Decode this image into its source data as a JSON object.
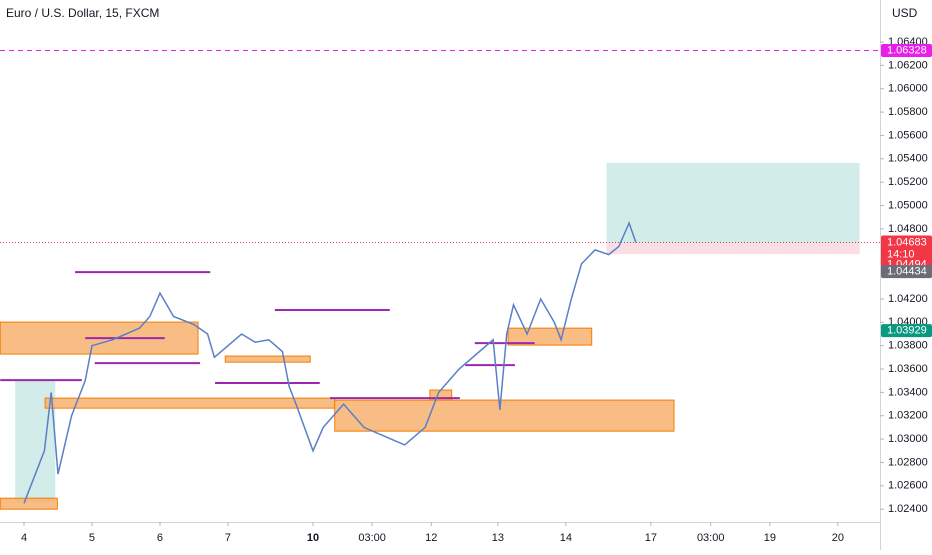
{
  "chart_data": {
    "type": "line",
    "title": "Euro / U.S. Dollar, 15, FXCM",
    "currency": "USD",
    "countdown": "14:10",
    "color": "#5b7fc7",
    "x": [
      0,
      0.3,
      0.4,
      0.5,
      0.7,
      0.9,
      1.0,
      1.3,
      1.5,
      1.7,
      1.85,
      2.0,
      2.2,
      2.5,
      2.7,
      2.8,
      3.0,
      3.2,
      3.4,
      3.6,
      3.8,
      3.9,
      4.0,
      4.25,
      4.4,
      4.7,
      5.0,
      5.4,
      5.6,
      5.9,
      6.1,
      6.4,
      6.7,
      6.9,
      7.0,
      7.1,
      7.2,
      7.4,
      7.6,
      7.8,
      7.9,
      8.05,
      8.2,
      8.4,
      8.6,
      8.75,
      8.9,
      9.0
    ],
    "values": [
      1.0245,
      1.029,
      1.034,
      1.027,
      1.032,
      1.035,
      1.038,
      1.0385,
      1.039,
      1.0395,
      1.0405,
      1.0425,
      1.0405,
      1.0398,
      1.039,
      1.037,
      1.038,
      1.039,
      1.0383,
      1.0385,
      1.0375,
      1.0345,
      1.033,
      1.029,
      1.031,
      1.033,
      1.031,
      1.03,
      1.0295,
      1.031,
      1.034,
      1.036,
      1.0375,
      1.0385,
      1.0325,
      1.039,
      1.0415,
      1.039,
      1.042,
      1.04,
      1.0385,
      1.042,
      1.045,
      1.0462,
      1.0458,
      1.0465,
      1.0485,
      1.04683
    ],
    "xlim": [
      -0.353,
      12.59
    ],
    "ylim": [
      1.0229,
      1.0676
    ],
    "xticks": [
      {
        "value": 0,
        "label": "4"
      },
      {
        "value": 1,
        "label": "5"
      },
      {
        "value": 2,
        "label": "6"
      },
      {
        "value": 3,
        "label": "7"
      },
      {
        "value": 4.25,
        "label": "10"
      },
      {
        "value": 5.12,
        "label": "03:00"
      },
      {
        "value": 5.99,
        "label": "12"
      },
      {
        "value": 6.97,
        "label": "13"
      },
      {
        "value": 7.97,
        "label": "14"
      },
      {
        "value": 9.22,
        "label": "17"
      },
      {
        "value": 10.1,
        "label": "03:00"
      },
      {
        "value": 10.97,
        "label": "19"
      },
      {
        "value": 11.97,
        "label": "20"
      }
    ],
    "yticks": [
      {
        "value": 1.064,
        "label": "1.06400"
      },
      {
        "value": 1.062,
        "label": "1.06200"
      },
      {
        "value": 1.06,
        "label": "1.06000"
      },
      {
        "value": 1.058,
        "label": "1.05800"
      },
      {
        "value": 1.056,
        "label": "1.05600"
      },
      {
        "value": 1.054,
        "label": "1.05400"
      },
      {
        "value": 1.052,
        "label": "1.05200"
      },
      {
        "value": 1.05,
        "label": "1.05000"
      },
      {
        "value": 1.048,
        "label": "1.04800"
      },
      {
        "value": 1.042,
        "label": "1.04200"
      },
      {
        "value": 1.04,
        "label": "1.04000"
      },
      {
        "value": 1.038,
        "label": "1.03800"
      },
      {
        "value": 1.036,
        "label": "1.03600"
      },
      {
        "value": 1.034,
        "label": "1.03400"
      },
      {
        "value": 1.032,
        "label": "1.03200"
      },
      {
        "value": 1.03,
        "label": "1.03000"
      },
      {
        "value": 1.028,
        "label": "1.02800"
      },
      {
        "value": 1.026,
        "label": "1.02600"
      },
      {
        "value": 1.024,
        "label": "1.02400"
      }
    ],
    "badges": [
      {
        "value": 1.06328,
        "color": "#e91ee9"
      },
      {
        "value": 1.04683,
        "color": "#f23645"
      },
      {
        "value": 1.04494,
        "color": "#f23645"
      },
      {
        "value": 1.04434,
        "color": "#6a6d78"
      },
      {
        "value": 1.03929,
        "color": "#089981"
      }
    ],
    "zones": [
      {
        "x0": 8.57,
        "x1": 12.29,
        "y0": 1.04678,
        "y1": 1.05364,
        "color": "#b2dfdb"
      },
      {
        "x0": 8.57,
        "x1": 12.29,
        "y0": 1.04584,
        "y1": 1.04678,
        "color": "#f8c8d0"
      },
      {
        "x0": -0.13,
        "x1": 0.46,
        "y0": 1.0246,
        "y1": 1.035,
        "color": "#b2dfdb"
      },
      {
        "x0": -0.35,
        "x1": 2.56,
        "y0": 1.03728,
        "y1": 1.04002,
        "color": "#f7b26e"
      },
      {
        "x0": 0.31,
        "x1": 4.57,
        "y0": 1.03265,
        "y1": 1.03351,
        "color": "#f7b26e"
      },
      {
        "x0": 4.57,
        "x1": 9.56,
        "y0": 1.03068,
        "y1": 1.03334,
        "color": "#f7b26e"
      },
      {
        "x0": 7.12,
        "x1": 8.35,
        "y0": 1.03805,
        "y1": 1.0395,
        "color": "#f7b26e"
      },
      {
        "x0": 2.96,
        "x1": 4.21,
        "y0": 1.03659,
        "y1": 1.03711,
        "color": "#f7b26e"
      },
      {
        "x0": -0.35,
        "x1": 0.49,
        "y0": 1.024,
        "y1": 1.02494,
        "color": "#f7b26e"
      },
      {
        "x0": 5.97,
        "x1": 6.29,
        "y0": 1.03334,
        "y1": 1.0342,
        "color": "#f7b26e"
      }
    ],
    "levels": [
      {
        "x0": 0.75,
        "x1": 2.74,
        "y": 1.0443
      },
      {
        "x0": 3.69,
        "x1": 5.38,
        "y": 1.04105
      },
      {
        "x0": 0.9,
        "x1": 2.07,
        "y": 1.03865
      },
      {
        "x0": 1.04,
        "x1": 2.59,
        "y": 1.0365
      },
      {
        "x0": -0.35,
        "x1": 0.85,
        "y": 1.03505
      },
      {
        "x0": 2.81,
        "x1": 4.35,
        "y": 1.0348
      },
      {
        "x0": 4.5,
        "x1": 6.41,
        "y": 1.03351
      },
      {
        "x0": 6.49,
        "x1": 7.22,
        "y": 1.03633
      },
      {
        "x0": 6.63,
        "x1": 7.51,
        "y": 1.03822
      }
    ]
  }
}
